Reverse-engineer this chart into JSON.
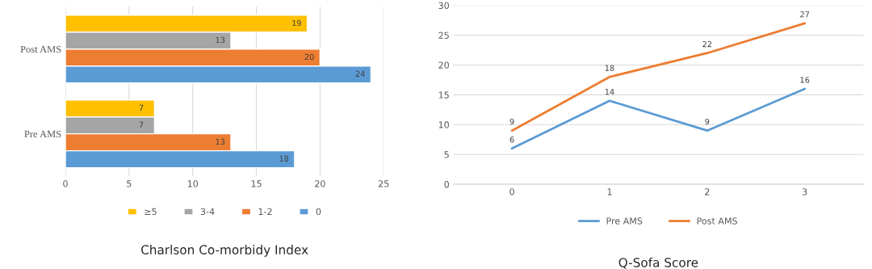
{
  "chart_data": [
    {
      "type": "bar",
      "orientation": "horizontal",
      "title": "Charlson Co-morbidy Index",
      "categories": [
        "Post AMS",
        "Pre AMS"
      ],
      "series": [
        {
          "name": "≥5",
          "color": "#ffc000",
          "values": [
            19,
            7
          ]
        },
        {
          "name": "3-4",
          "color": "#a5a5a5",
          "values": [
            13,
            7
          ]
        },
        {
          "name": "1-2",
          "color": "#ed7d31",
          "values": [
            20,
            13
          ]
        },
        {
          "name": "0",
          "color": "#5b9bd5",
          "values": [
            24,
            18
          ]
        }
      ],
      "xlim": [
        0,
        25
      ],
      "xticks": [
        0,
        5,
        10,
        15,
        20,
        25
      ],
      "grid": "x",
      "legend": "bottom",
      "data_labels": true
    },
    {
      "type": "line",
      "title": "Q-Sofa Score",
      "categories": [
        "0",
        "1",
        "2",
        "3"
      ],
      "series": [
        {
          "name": "Pre AMS",
          "color": "#5b9bd5",
          "values": [
            6,
            14,
            9,
            16
          ]
        },
        {
          "name": "Post AMS",
          "color": "#ed7d31",
          "values": [
            9,
            18,
            22,
            27
          ]
        }
      ],
      "ylim": [
        0,
        30
      ],
      "yticks": [
        0,
        5,
        10,
        15,
        20,
        25,
        30
      ],
      "grid": "y",
      "legend": "bottom",
      "data_labels": true,
      "marker": "none",
      "line_style": "solid"
    }
  ]
}
